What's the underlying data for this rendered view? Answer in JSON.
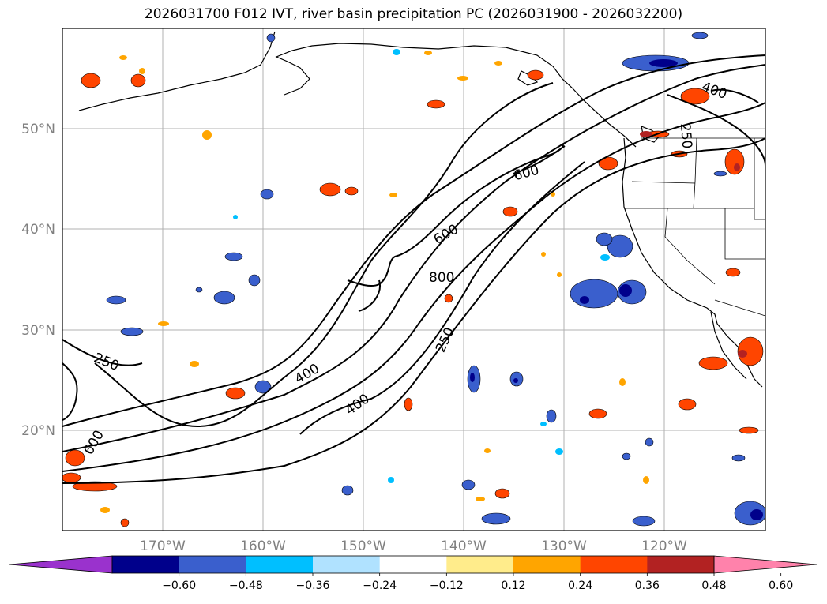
{
  "title": "2026031700 F012 IVT, river basin precipitation PC (2026031900 - 2026032200)",
  "map": {
    "lon_ticks": [
      "170°W",
      "160°W",
      "150°W",
      "140°W",
      "130°W",
      "120°W"
    ],
    "lat_ticks": [
      "50°N",
      "40°N",
      "30°N",
      "20°N"
    ],
    "contour_labels": [
      "250",
      "250",
      "250",
      "400",
      "400",
      "400",
      "600",
      "600",
      "600",
      "800"
    ]
  },
  "colorbar": {
    "colors": [
      "#9a32cd",
      "#00008b",
      "#3a5fcd",
      "#00bfff",
      "#b0e2ff",
      "#ffffff",
      "#ffec8b",
      "#ffa500",
      "#ff4500",
      "#b22222",
      "#ff82ab"
    ],
    "tick_labels": [
      "−0.60",
      "−0.48",
      "−0.36",
      "−0.24",
      "−0.12",
      "0.12",
      "0.24",
      "0.36",
      "0.48",
      "0.60"
    ]
  }
}
